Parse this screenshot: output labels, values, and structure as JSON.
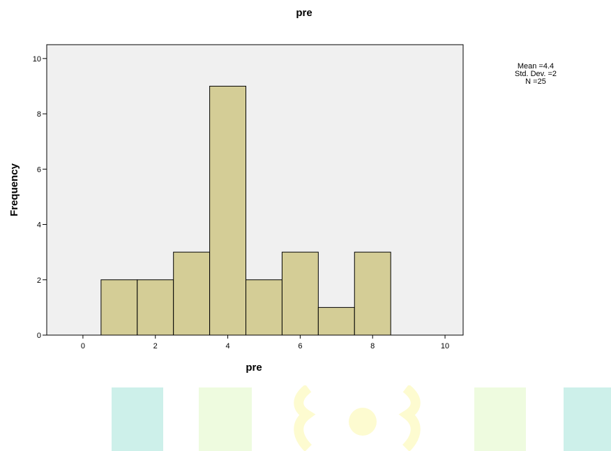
{
  "chart_data": {
    "type": "bar",
    "title": "pre",
    "xlabel": "pre",
    "ylabel": "Frequency",
    "bins": [
      {
        "from": 0.5,
        "to": 1.5,
        "count": 2
      },
      {
        "from": 1.5,
        "to": 2.5,
        "count": 2
      },
      {
        "from": 2.5,
        "to": 3.5,
        "count": 3
      },
      {
        "from": 3.5,
        "to": 4.5,
        "count": 9
      },
      {
        "from": 4.5,
        "to": 5.5,
        "count": 2
      },
      {
        "from": 5.5,
        "to": 6.5,
        "count": 3
      },
      {
        "from": 6.5,
        "to": 7.5,
        "count": 1
      },
      {
        "from": 7.5,
        "to": 8.5,
        "count": 3
      }
    ],
    "xlim": [
      -1,
      10.5
    ],
    "ylim": [
      0,
      10.5
    ],
    "x_ticks": [
      "0",
      "2",
      "4",
      "6",
      "8",
      "10"
    ],
    "y_ticks": [
      "0",
      "2",
      "4",
      "6",
      "8",
      "10"
    ],
    "bar_color": "#d4cd96",
    "plot_background": "#f0f0f0",
    "stats": {
      "mean": "Mean =4.4",
      "std_dev": "Std. Dev. =2",
      "n": "N =25"
    }
  }
}
